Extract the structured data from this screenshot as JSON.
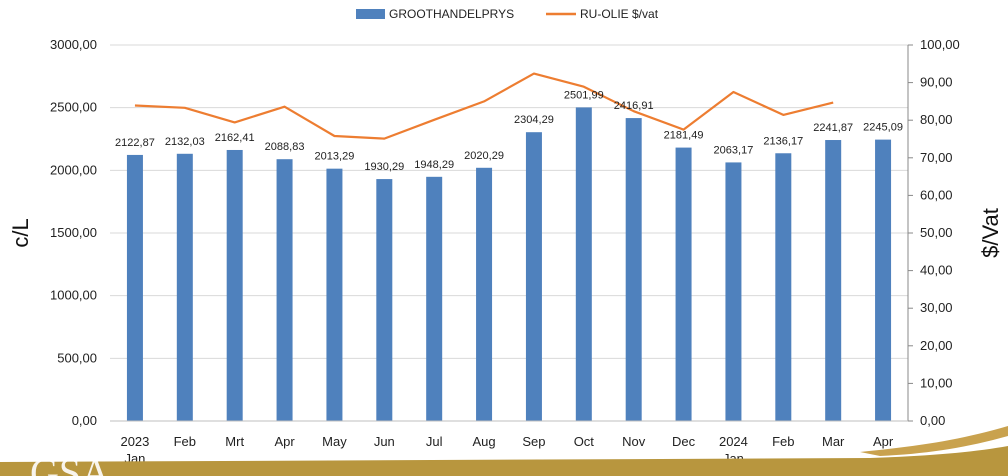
{
  "chart_data": {
    "type": "bar",
    "categories": [
      "2023",
      "Feb",
      "Mrt",
      "Apr",
      "May",
      "Jun",
      "Jul",
      "Aug",
      "Sep",
      "Oct",
      "Nov",
      "Dec",
      "2024",
      "Feb",
      "Mar",
      "Apr"
    ],
    "category_sublabels": [
      "Jan",
      "",
      "",
      "",
      "",
      "",
      "",
      "",
      "",
      "",
      "",
      "",
      "Jan",
      "",
      "",
      ""
    ],
    "series": [
      {
        "name": "GROOTHANDELPRYS",
        "type": "bar",
        "axis": "left",
        "color": "#4f81bd",
        "values": [
          2122.87,
          2132.03,
          2162.41,
          2088.83,
          2013.29,
          1930.29,
          1948.29,
          2020.29,
          2304.29,
          2501.99,
          2416.91,
          2181.49,
          2063.17,
          2136.17,
          2241.87,
          2245.09
        ],
        "data_labels": [
          "2122,87",
          "2132,03",
          "2162,41",
          "2088,83",
          "2013,29",
          "1930,29",
          "1948,29",
          "2020,29",
          "2304,29",
          "2501,99",
          "2416,91",
          "2181,49",
          "2063,17",
          "2136,17",
          "2241,87",
          "2245,09"
        ]
      },
      {
        "name": "RU-OLIE $/vat",
        "type": "line",
        "axis": "right",
        "color": "#ed7d31",
        "values": [
          83.9,
          83.3,
          79.4,
          83.6,
          75.8,
          75.1,
          80.1,
          85.0,
          92.4,
          88.9,
          82.4,
          77.5,
          87.5,
          81.4,
          84.7,
          null
        ]
      }
    ],
    "ylabel": "c/L",
    "y2label": "$/Vat",
    "ylim": [
      0,
      3000
    ],
    "y2lim": [
      0,
      100
    ],
    "yticks": [
      "0,00",
      "500,00",
      "1000,00",
      "1500,00",
      "2000,00",
      "2500,00",
      "3000,00"
    ],
    "y2ticks": [
      "0,00",
      "10,00",
      "20,00",
      "30,00",
      "40,00",
      "50,00",
      "60,00",
      "70,00",
      "80,00",
      "90,00",
      "100,00"
    ],
    "grid": true,
    "legend": "top-center"
  },
  "footer": {
    "logo_text": "GSA",
    "band_color": "#b8963e"
  }
}
